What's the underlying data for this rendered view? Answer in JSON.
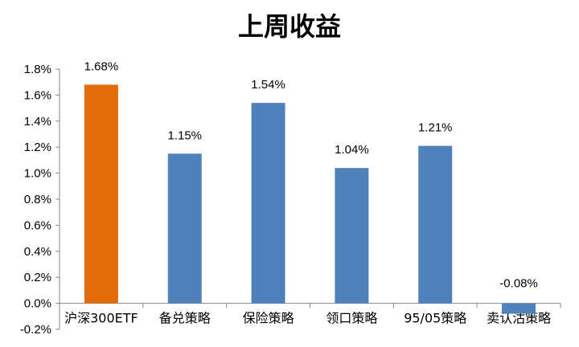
{
  "chart_data": {
    "type": "bar",
    "title": "上周收益",
    "xlabel": "",
    "ylabel": "",
    "categories": [
      "沪深300ETF",
      "备兑策略",
      "保险策略",
      "领口策略",
      "95/05策略",
      "卖认沽策略"
    ],
    "values": [
      1.68,
      1.15,
      1.54,
      1.04,
      1.21,
      -0.08
    ],
    "data_labels": [
      "1.68%",
      "1.15%",
      "1.54%",
      "1.04%",
      "1.21%",
      "-0.08%"
    ],
    "ylim": [
      -0.2,
      1.8
    ],
    "yticks": [
      -0.2,
      0.0,
      0.2,
      0.4,
      0.6,
      0.8,
      1.0,
      1.2,
      1.4,
      1.6,
      1.8
    ],
    "ytick_labels": [
      "-0.2%",
      "0.0%",
      "0.2%",
      "0.4%",
      "0.6%",
      "0.8%",
      "1.0%",
      "1.2%",
      "1.4%",
      "1.6%",
      "1.8%"
    ],
    "grid": false,
    "legend": "none",
    "colors": {
      "highlight": "#e36c09",
      "default": "#4f81bd",
      "axis": "#868686"
    },
    "highlight_index": 0
  }
}
